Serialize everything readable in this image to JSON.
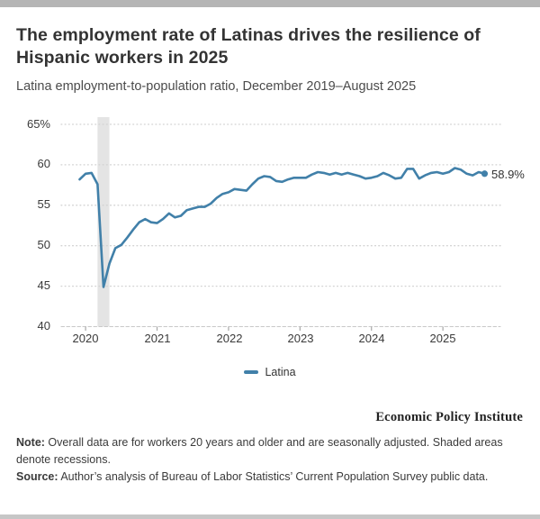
{
  "page": {
    "title": "The employment rate of Latinas drives the resilience of Hispanic workers in 2025",
    "subtitle": "Latina employment-to-population ratio, December 2019–August 2025",
    "branding": "Economic Policy Institute",
    "note_label": "Note:",
    "note_text": " Overall data are for workers 20 years and older and are seasonally adjusted. Shaded areas denote recessions.",
    "source_label": "Source:",
    "source_text": " Author’s analysis of Bureau of Labor Statistics’ Current Population Survey public data."
  },
  "chart_data": {
    "type": "line",
    "title": "Latina employment-to-population ratio, December 2019–August 2025",
    "x_start": "2019-12",
    "x_interval": "monthly",
    "x_tick_labels": [
      "2020",
      "2021",
      "2022",
      "2023",
      "2024",
      "2025"
    ],
    "y_ticks": [
      65,
      60,
      55,
      50,
      45,
      40
    ],
    "y_tick_labels": [
      "65%",
      "60",
      "55",
      "50",
      "45",
      "40"
    ],
    "ylim": [
      40,
      65
    ],
    "grid": "dotted horizontal",
    "legend_position": "bottom-center",
    "end_label": "58.9%",
    "recession_bands": [
      {
        "start": "2020-03",
        "end": "2020-05"
      }
    ],
    "series": [
      {
        "name": "Latina",
        "color": "#4180a9",
        "values": [
          58.2,
          58.9,
          59.0,
          57.6,
          44.9,
          47.8,
          49.7,
          50.1,
          51.0,
          52.0,
          52.9,
          53.3,
          52.9,
          52.8,
          53.3,
          54.0,
          53.5,
          53.7,
          54.4,
          54.6,
          54.8,
          54.8,
          55.2,
          55.9,
          56.4,
          56.6,
          57.0,
          56.9,
          56.8,
          57.6,
          58.3,
          58.6,
          58.5,
          58.0,
          57.9,
          58.2,
          58.4,
          58.4,
          58.4,
          58.8,
          59.1,
          59.0,
          58.8,
          59.0,
          58.8,
          59.0,
          58.8,
          58.6,
          58.3,
          58.4,
          58.6,
          59.0,
          58.7,
          58.3,
          58.4,
          59.5,
          59.5,
          58.3,
          58.7,
          59.0,
          59.1,
          58.9,
          59.1,
          59.6,
          59.4,
          58.9,
          58.7,
          59.1,
          58.9
        ]
      }
    ]
  },
  "colors": {
    "line": "#4180a9",
    "recession_band": "#e4e4e4",
    "gridline": "#d2d2d2",
    "axis_line": "#c9c9c9",
    "tick": "#a8a8a8",
    "top_bar": "#b5b5b5",
    "bottom_bar": "#c6c6c6"
  }
}
